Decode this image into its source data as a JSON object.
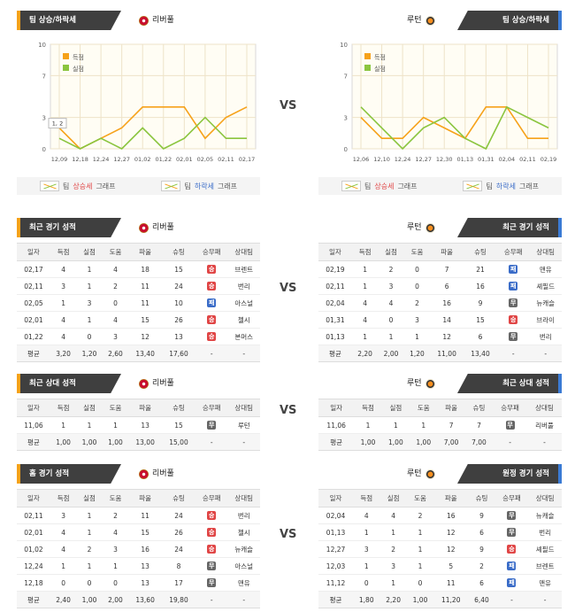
{
  "colors": {
    "accent_left": "#f6a21a",
    "accent_right": "#3a7bd5",
    "win": "#e04545",
    "draw": "#666666",
    "loss": "#3a6cc8",
    "score_line": "#f6a21a",
    "concede_line": "#8bc53f"
  },
  "vs_label": "VS",
  "home_team": "리버풀",
  "away_team": "루턴",
  "trend": {
    "left_title": "팀 상승/하락세",
    "right_title": "팀 상승/하락세",
    "legend_score": "득점",
    "legend_concede": "실점",
    "legend_up_prefix": "팀",
    "legend_up_word": "상승세",
    "legend_down_prefix": "팀",
    "legend_down_word": "하락세",
    "legend_suffix": "그래프",
    "tooltip": "1, 2"
  },
  "chart_data": [
    {
      "type": "line",
      "team": "리버풀",
      "x": [
        "12,09",
        "12,18",
        "12,24",
        "12,27",
        "01,02",
        "01,22",
        "02,01",
        "02,05",
        "02,11",
        "02,17"
      ],
      "ylim": [
        0,
        10
      ],
      "yticks": [
        0,
        3,
        7,
        10
      ],
      "series": [
        {
          "name": "득점",
          "values": [
            2,
            0,
            1,
            2,
            4,
            4,
            4,
            1,
            3,
            4
          ]
        },
        {
          "name": "실점",
          "values": [
            1,
            0,
            1,
            0,
            2,
            0,
            1,
            3,
            1,
            1
          ]
        }
      ]
    },
    {
      "type": "line",
      "team": "루턴",
      "x": [
        "12,06",
        "12,10",
        "12,24",
        "12,27",
        "12,30",
        "01,13",
        "01,31",
        "02,04",
        "02,11",
        "02,19"
      ],
      "ylim": [
        0,
        10
      ],
      "yticks": [
        0,
        3,
        7,
        10
      ],
      "series": [
        {
          "name": "득점",
          "values": [
            3,
            1,
            1,
            3,
            2,
            1,
            4,
            4,
            1,
            1
          ]
        },
        {
          "name": "실점",
          "values": [
            4,
            2,
            0,
            2,
            3,
            1,
            0,
            4,
            3,
            2
          ]
        }
      ]
    }
  ],
  "columns": [
    "일자",
    "득점",
    "실점",
    "도움",
    "파울",
    "슈팅",
    "승무패",
    "상대팀"
  ],
  "recent": {
    "left_title": "최근 경기 성적",
    "right_title": "최근 경기 성적",
    "left_rows": [
      [
        "02,17",
        "4",
        "1",
        "4",
        "18",
        "15",
        "W",
        "브렌트"
      ],
      [
        "02,11",
        "3",
        "1",
        "2",
        "11",
        "24",
        "W",
        "번리"
      ],
      [
        "02,05",
        "1",
        "3",
        "0",
        "11",
        "10",
        "L",
        "아스널"
      ],
      [
        "02,01",
        "4",
        "1",
        "4",
        "15",
        "26",
        "W",
        "첼시"
      ],
      [
        "01,22",
        "4",
        "0",
        "3",
        "12",
        "13",
        "W",
        "본머스"
      ]
    ],
    "left_avg": [
      "평균",
      "3,20",
      "1,20",
      "2,60",
      "13,40",
      "17,60",
      "-",
      "-"
    ],
    "right_rows": [
      [
        "02,19",
        "1",
        "2",
        "0",
        "7",
        "21",
        "L",
        "맨유"
      ],
      [
        "02,11",
        "1",
        "3",
        "0",
        "6",
        "16",
        "L",
        "셰필드"
      ],
      [
        "02,04",
        "4",
        "4",
        "2",
        "16",
        "9",
        "D",
        "뉴캐슬"
      ],
      [
        "01,31",
        "4",
        "0",
        "3",
        "14",
        "15",
        "W",
        "브라이"
      ],
      [
        "01,13",
        "1",
        "1",
        "1",
        "12",
        "6",
        "D",
        "번리"
      ]
    ],
    "right_avg": [
      "평균",
      "2,20",
      "2,00",
      "1,20",
      "11,00",
      "13,40",
      "-",
      "-"
    ]
  },
  "h2h": {
    "left_title": "최근 상대 성적",
    "right_title": "최근 상대 성적",
    "left_rows": [
      [
        "11,06",
        "1",
        "1",
        "1",
        "13",
        "15",
        "D",
        "루턴"
      ]
    ],
    "left_avg": [
      "평균",
      "1,00",
      "1,00",
      "1,00",
      "13,00",
      "15,00",
      "-",
      "-"
    ],
    "right_rows": [
      [
        "11,06",
        "1",
        "1",
        "1",
        "7",
        "7",
        "D",
        "리버풀"
      ]
    ],
    "right_avg": [
      "평균",
      "1,00",
      "1,00",
      "1,00",
      "7,00",
      "7,00",
      "-",
      "-"
    ]
  },
  "venue": {
    "left_title": "홈 경기 성적",
    "right_title": "원정 경기 성적",
    "left_rows": [
      [
        "02,11",
        "3",
        "1",
        "2",
        "11",
        "24",
        "W",
        "번리"
      ],
      [
        "02,01",
        "4",
        "1",
        "4",
        "15",
        "26",
        "W",
        "첼시"
      ],
      [
        "01,02",
        "4",
        "2",
        "3",
        "16",
        "24",
        "W",
        "뉴캐슬"
      ],
      [
        "12,24",
        "1",
        "1",
        "1",
        "13",
        "8",
        "D",
        "아스널"
      ],
      [
        "12,18",
        "0",
        "0",
        "0",
        "13",
        "17",
        "D",
        "맨유"
      ]
    ],
    "left_avg": [
      "평균",
      "2,40",
      "1,00",
      "2,00",
      "13,60",
      "19,80",
      "-",
      "-"
    ],
    "right_rows": [
      [
        "02,04",
        "4",
        "4",
        "2",
        "16",
        "9",
        "D",
        "뉴캐슬"
      ],
      [
        "01,13",
        "1",
        "1",
        "1",
        "12",
        "6",
        "D",
        "번리"
      ],
      [
        "12,27",
        "3",
        "2",
        "1",
        "12",
        "9",
        "W",
        "셰필드"
      ],
      [
        "12,03",
        "1",
        "3",
        "1",
        "5",
        "2",
        "L",
        "브렌트"
      ],
      [
        "11,12",
        "0",
        "1",
        "0",
        "11",
        "6",
        "L",
        "맨유"
      ]
    ],
    "right_avg": [
      "평균",
      "1,80",
      "2,20",
      "1,00",
      "11,20",
      "6,40",
      "-",
      "-"
    ]
  },
  "result_glyphs": {
    "W": "승",
    "D": "무",
    "L": "패"
  }
}
